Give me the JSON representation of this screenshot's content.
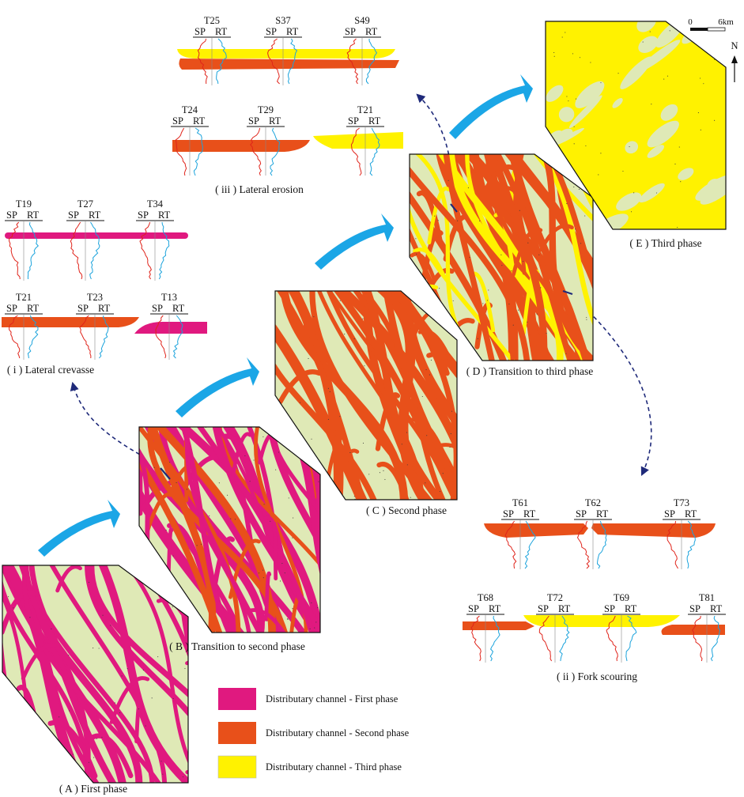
{
  "colors": {
    "first_phase": "#e0197f",
    "second_phase": "#e8501a",
    "third_phase": "#fff200",
    "background_sand": "#dfe9b6",
    "sp_curve": "#e0241b",
    "rt_curve": "#1ba3dc",
    "flow_arrow": "#1ba6e6",
    "callout_arrow": "#1f2a7a"
  },
  "panels": {
    "A": {
      "caption": "( A ) First phase"
    },
    "B": {
      "caption": "( B ) Transition to second phase"
    },
    "C": {
      "caption": "( C ) Second phase"
    },
    "D": {
      "caption": "( D ) Transition to third phase"
    },
    "E": {
      "caption": "( E ) Third phase"
    }
  },
  "sections": {
    "i": {
      "caption": "( i ) Lateral crevasse",
      "rows": [
        [
          "T19",
          "T27",
          "T34"
        ],
        [
          "T21",
          "T23",
          "T13"
        ]
      ]
    },
    "ii": {
      "caption": "( ii ) Fork scouring",
      "rows": [
        [
          "T61",
          "T62",
          "T73"
        ],
        [
          "T68",
          "T72",
          "T69",
          "T81"
        ]
      ]
    },
    "iii": {
      "caption": "( iii ) Lateral erosion",
      "rows": [
        [
          "T25",
          "S37",
          "S49"
        ],
        [
          "T24",
          "T29",
          "T21"
        ]
      ]
    }
  },
  "log_labels": {
    "sp": "SP",
    "rt": "RT"
  },
  "legend": [
    {
      "label": "Distributary channel - First phase",
      "color": "#e0197f"
    },
    {
      "label": "Distributary channel - Second phase",
      "color": "#e8501a"
    },
    {
      "label": "Distributary channel - Third phase",
      "color": "#fff200"
    }
  ],
  "scale_bar": {
    "start": "0",
    "end": "6km"
  },
  "north": "N"
}
